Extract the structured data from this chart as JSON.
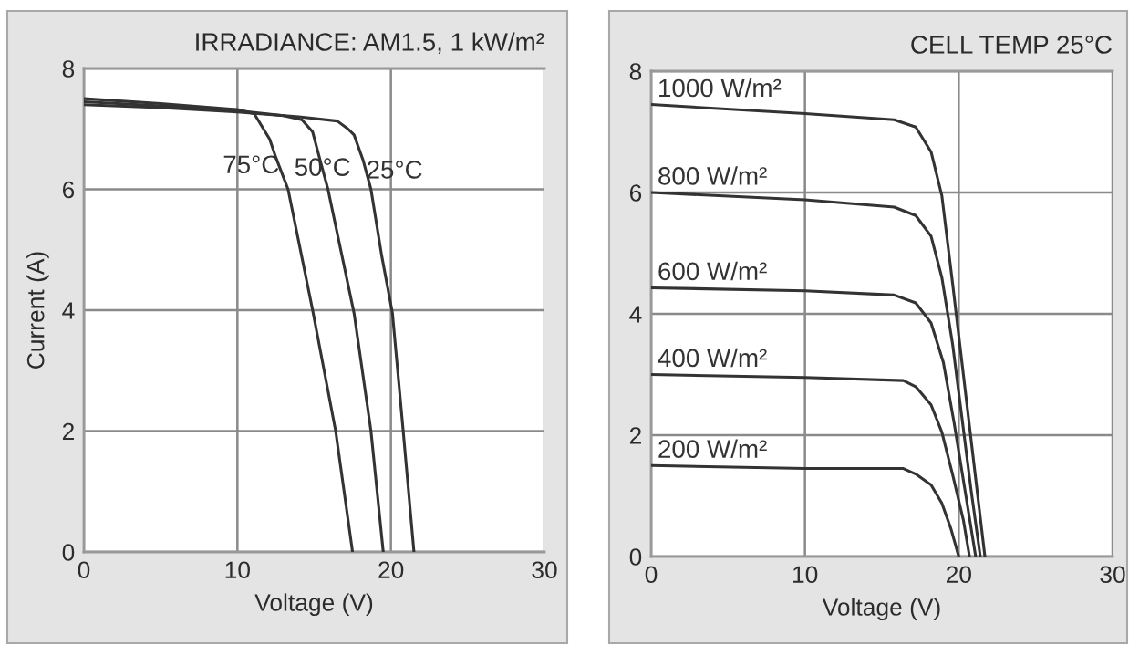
{
  "chart_data": [
    {
      "type": "line",
      "title": "IRRADIANCE: AM1.5, 1 kW/m²",
      "xlabel": "Voltage (V)",
      "ylabel": "Current (A)",
      "xlim": [
        0,
        30
      ],
      "ylim": [
        0,
        8
      ],
      "xticks": [
        0,
        10,
        20,
        30
      ],
      "yticks": [
        0,
        2,
        4,
        6,
        8
      ],
      "grid": true,
      "series": [
        {
          "name": "75°C",
          "color": "#333333",
          "x": [
            0,
            5,
            10,
            11.1,
            12.1,
            12.5,
            13.3,
            14.9,
            16.4,
            17.5
          ],
          "values": [
            7.5,
            7.42,
            7.32,
            7.25,
            6.83,
            6.53,
            6.0,
            4.0,
            2.0,
            0
          ]
        },
        {
          "name": "50°C",
          "color": "#333333",
          "x": [
            0,
            5,
            10,
            13,
            14.2,
            14.9,
            15.4,
            15.9,
            17.6,
            18.7,
            19.5
          ],
          "values": [
            7.45,
            7.38,
            7.3,
            7.22,
            7.15,
            6.95,
            6.47,
            6.0,
            3.95,
            2.0,
            0
          ]
        },
        {
          "name": "25°C",
          "color": "#333333",
          "x": [
            0,
            5,
            10,
            14,
            16.5,
            17.2,
            17.6,
            18.2,
            18.7,
            19.4,
            20.1,
            20.8,
            21.5
          ],
          "values": [
            7.4,
            7.35,
            7.28,
            7.2,
            7.13,
            7.0,
            6.9,
            6.47,
            6.0,
            4.9,
            3.95,
            2.0,
            0
          ]
        }
      ]
    },
    {
      "type": "line",
      "title": "CELL TEMP 25°C",
      "xlabel": "Voltage (V)",
      "xlim": [
        0,
        30
      ],
      "ylim": [
        0,
        8
      ],
      "xticks": [
        0,
        10,
        20,
        30
      ],
      "yticks": [
        0,
        2,
        4,
        6,
        8
      ],
      "grid": true,
      "series": [
        {
          "name": "1000 W/m²",
          "color": "#333333",
          "x": [
            0,
            10,
            15.8,
            17.2,
            18.2,
            18.9,
            19.6,
            20.3,
            21.0,
            21.7
          ],
          "values": [
            7.45,
            7.3,
            7.2,
            7.08,
            6.67,
            5.95,
            4.5,
            3.0,
            1.5,
            0
          ]
        },
        {
          "name": "800 W/m²",
          "color": "#333333",
          "x": [
            0,
            10,
            15.8,
            17.2,
            18.2,
            18.9,
            19.6,
            20.2,
            20.8,
            21.4
          ],
          "values": [
            6.0,
            5.88,
            5.76,
            5.62,
            5.28,
            4.6,
            3.5,
            2.3,
            1.1,
            0
          ]
        },
        {
          "name": "600 W/m²",
          "color": "#333333",
          "x": [
            0,
            10,
            15.8,
            17.2,
            18.2,
            19.0,
            19.7,
            20.4,
            21.1
          ],
          "values": [
            4.43,
            4.38,
            4.31,
            4.18,
            3.85,
            3.2,
            2.2,
            1.1,
            0
          ]
        },
        {
          "name": "400 W/m²",
          "color": "#333333",
          "x": [
            0,
            10,
            16.4,
            17.2,
            18.2,
            18.9,
            19.6,
            20.3,
            20.7
          ],
          "values": [
            3.0,
            2.95,
            2.9,
            2.8,
            2.5,
            2.05,
            1.35,
            0.6,
            0
          ]
        },
        {
          "name": "200 W/m²",
          "color": "#333333",
          "x": [
            0,
            10,
            16.4,
            17.2,
            18.2,
            18.9,
            19.5,
            20.0
          ],
          "values": [
            1.5,
            1.45,
            1.45,
            1.36,
            1.18,
            0.88,
            0.45,
            0
          ]
        }
      ]
    }
  ]
}
